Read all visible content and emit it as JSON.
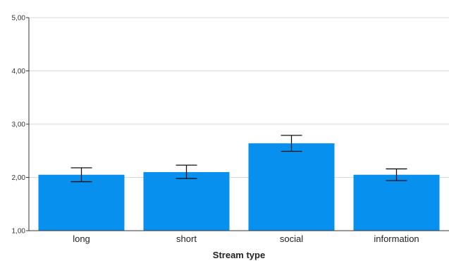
{
  "chart_data": {
    "type": "bar",
    "categories": [
      "long",
      "short",
      "social",
      "information"
    ],
    "values": [
      2.05,
      2.1,
      2.64,
      2.05
    ],
    "error_low": [
      1.92,
      1.98,
      2.49,
      1.94
    ],
    "error_high": [
      2.18,
      2.23,
      2.79,
      2.16
    ],
    "xlabel": "Stream type",
    "ylabel": "",
    "ylim": [
      1,
      5
    ],
    "yticks": [
      1,
      2,
      3,
      4,
      5
    ],
    "ytick_labels": [
      "1,00",
      "2,00",
      "3,00",
      "4,00",
      "5,00"
    ],
    "grid": true,
    "bar_color": "#0790ee",
    "grid_color": "#d9d9d9",
    "axis_color": "#333333"
  }
}
